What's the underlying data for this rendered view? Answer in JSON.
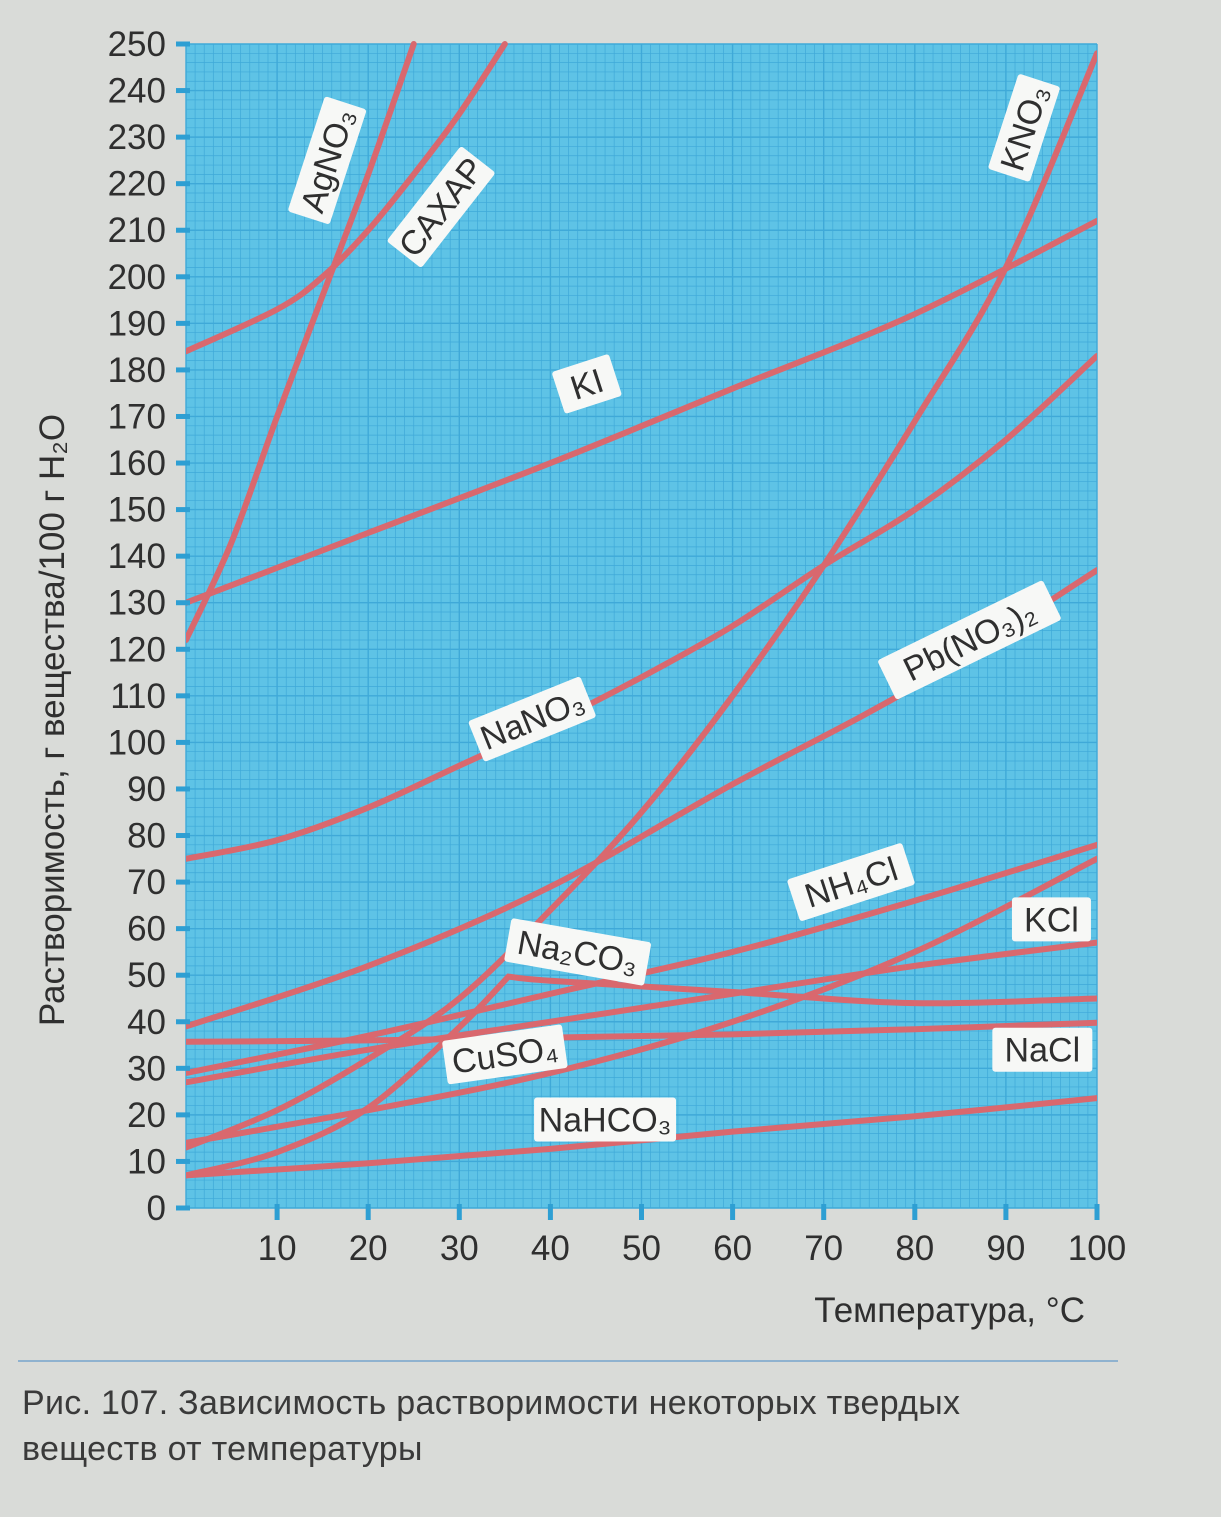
{
  "caption": {
    "line1": "Рис. 107. Зависимость растворимости некоторых твердых",
    "line2": "веществ от температуры"
  },
  "colors": {
    "grid_background": "#5ec3e6",
    "grid_line": "#3fa9d8",
    "curve": "#d9686e",
    "page": "#d9dbd8"
  },
  "chart_data": {
    "type": "line",
    "title": "",
    "xlabel": "Температура, °С",
    "ylabel": "Растворимость, г вещества/100 г H₂O",
    "xlim": [
      0,
      100
    ],
    "ylim": [
      0,
      250
    ],
    "xticks": [
      10,
      20,
      30,
      40,
      50,
      60,
      70,
      80,
      90,
      100
    ],
    "yticks": [
      0,
      10,
      20,
      30,
      40,
      50,
      60,
      70,
      80,
      90,
      100,
      110,
      120,
      130,
      140,
      150,
      160,
      170,
      180,
      190,
      200,
      210,
      220,
      230,
      240,
      250
    ],
    "grid": true,
    "series": [
      {
        "name": "AgNO₃",
        "x": [
          0,
          5,
          10,
          15,
          20,
          25
        ],
        "y": [
          122,
          143,
          170,
          196,
          222,
          250
        ]
      },
      {
        "name": "САХАР",
        "x": [
          0,
          10,
          15,
          20,
          25,
          30,
          35
        ],
        "y": [
          184,
          193,
          200,
          210,
          222,
          235,
          250
        ]
      },
      {
        "name": "KI",
        "x": [
          0,
          20,
          40,
          60,
          80,
          100
        ],
        "y": [
          130,
          145,
          160,
          176,
          192,
          212
        ]
      },
      {
        "name": "KNO₃",
        "x": [
          0,
          10,
          20,
          30,
          40,
          50,
          60,
          70,
          80,
          90,
          100
        ],
        "y": [
          13,
          21,
          32,
          45,
          64,
          85,
          110,
          138,
          169,
          202,
          248
        ]
      },
      {
        "name": "NaNO₃",
        "x": [
          0,
          10,
          20,
          30,
          40,
          50,
          60,
          70,
          80,
          90,
          100
        ],
        "y": [
          75,
          79,
          86,
          95,
          104,
          114,
          125,
          138,
          150,
          165,
          183
        ]
      },
      {
        "name": "Pb(NO₃)₂",
        "x": [
          0,
          20,
          40,
          60,
          80,
          100
        ],
        "y": [
          39,
          52,
          69,
          91,
          112,
          137
        ]
      },
      {
        "name": "NH₄Cl",
        "x": [
          0,
          20,
          40,
          60,
          80,
          100
        ],
        "y": [
          29,
          37,
          46,
          55,
          66,
          78
        ]
      },
      {
        "name": "KCl",
        "x": [
          0,
          20,
          40,
          60,
          80,
          100
        ],
        "y": [
          27,
          34,
          40,
          46,
          52,
          57
        ]
      },
      {
        "name": "NaCl",
        "x": [
          0,
          20,
          40,
          60,
          80,
          100
        ],
        "y": [
          35.7,
          36,
          36.6,
          37.3,
          38.4,
          39.8
        ]
      },
      {
        "name": "Na₂CO₃",
        "x": [
          0,
          10,
          20,
          30,
          35.4,
          40,
          60,
          80,
          100
        ],
        "y": [
          7,
          12,
          21.5,
          38.8,
          49.7,
          48.8,
          46.4,
          44,
          45
        ]
      },
      {
        "name": "CuSO₄",
        "x": [
          0,
          20,
          40,
          60,
          80,
          100
        ],
        "y": [
          14,
          21,
          29,
          40,
          55,
          75
        ]
      },
      {
        "name": "NaHCO₃",
        "x": [
          0,
          20,
          40,
          60,
          80,
          100
        ],
        "y": [
          7,
          9.6,
          12.7,
          16.4,
          19.7,
          23.6
        ]
      }
    ]
  }
}
